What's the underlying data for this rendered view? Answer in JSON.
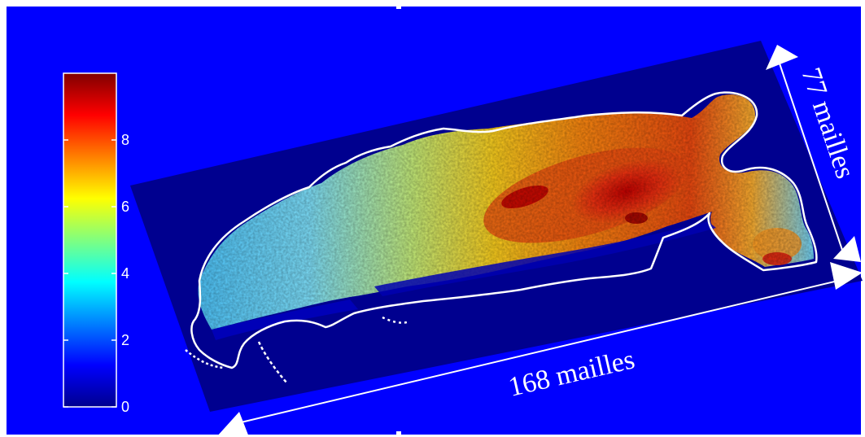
{
  "chart_data": {
    "type": "heatmap",
    "colormap": "jet",
    "background_color": "#0000ff",
    "grid_background_color": "#00008f",
    "outline_color": "#ffffff",
    "colorbar": {
      "range": [
        0,
        10
      ],
      "ticks": [
        "0",
        "2",
        "4",
        "6",
        "8"
      ],
      "tick_values": [
        0,
        2,
        4,
        6,
        8
      ],
      "placement": "left"
    },
    "grid_dimensions": {
      "length_label": "168 mailles",
      "width_label": "77 mailles",
      "length_cells": 168,
      "width_cells": 77
    },
    "title": "",
    "xlabel": "",
    "ylabel": ""
  }
}
